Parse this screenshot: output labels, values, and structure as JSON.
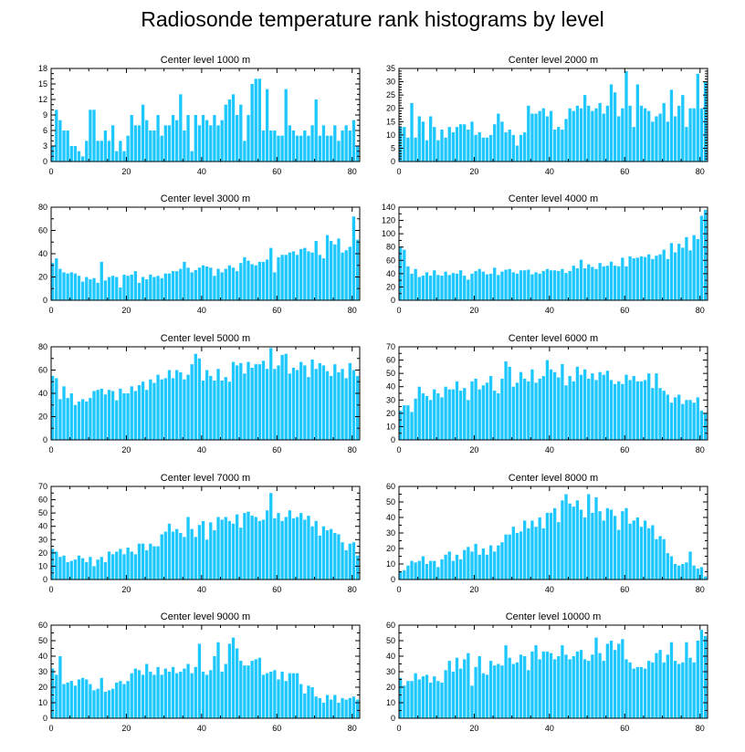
{
  "title": "Radiosonde temperature rank histograms by level",
  "colors": {
    "bar": "#1ec8ff",
    "bar_edge": "#ffffff",
    "axis": "#000000"
  },
  "chart_data": [
    {
      "type": "bar",
      "title": "Center level 1000 m",
      "xlim": [
        0,
        82
      ],
      "ylim": [
        0,
        18
      ],
      "xticks": [
        0,
        20,
        40,
        60,
        80
      ],
      "yticks": [
        0,
        3,
        6,
        9,
        12,
        15,
        18
      ],
      "values": [
        3,
        10,
        8,
        6,
        6,
        3,
        3,
        2,
        1,
        4,
        10,
        10,
        4,
        4,
        6,
        4,
        7,
        2,
        4,
        2,
        5,
        9,
        7,
        7,
        11,
        8,
        6,
        6,
        9,
        5,
        7,
        7,
        9,
        8,
        13,
        6,
        9,
        2,
        9,
        7,
        9,
        8,
        7,
        9,
        7,
        8,
        11,
        12,
        13,
        9,
        11,
        4,
        9,
        15,
        16,
        16,
        6,
        14,
        6,
        6,
        5,
        5,
        14,
        7,
        6,
        5,
        5,
        6,
        5,
        7,
        12,
        5,
        7,
        5,
        5,
        7,
        4,
        6,
        7,
        6,
        8,
        3
      ]
    },
    {
      "type": "bar",
      "title": "Center level 2000 m",
      "xlim": [
        0,
        82
      ],
      "ylim": [
        0,
        35
      ],
      "xticks": [
        0,
        20,
        40,
        60,
        80
      ],
      "yticks": [
        0,
        5,
        10,
        15,
        20,
        25,
        30,
        35
      ],
      "values": [
        13,
        13,
        9,
        22,
        9,
        17,
        15,
        8,
        17,
        13,
        8,
        12,
        9,
        13,
        11,
        13,
        14,
        14,
        12,
        15,
        10,
        11,
        9,
        9,
        10,
        14,
        18,
        15,
        11,
        12,
        10,
        6,
        10,
        11,
        21,
        18,
        18,
        19,
        20,
        17,
        19,
        12,
        13,
        12,
        16,
        20,
        19,
        21,
        20,
        25,
        21,
        19,
        20,
        22,
        18,
        21,
        29,
        26,
        17,
        20,
        34,
        21,
        13,
        29,
        21,
        20,
        19,
        15,
        17,
        18,
        22,
        15,
        27,
        17,
        21,
        25,
        13,
        20,
        20,
        33,
        20,
        30
      ]
    },
    {
      "type": "bar",
      "title": "Center level 3000 m",
      "xlim": [
        0,
        82
      ],
      "ylim": [
        0,
        80
      ],
      "xticks": [
        0,
        20,
        40,
        60,
        80
      ],
      "yticks": [
        0,
        20,
        40,
        60,
        80
      ],
      "values": [
        32,
        36,
        27,
        24,
        23,
        24,
        23,
        21,
        16,
        20,
        18,
        19,
        15,
        33,
        17,
        20,
        21,
        20,
        11,
        22,
        21,
        22,
        25,
        15,
        20,
        18,
        22,
        20,
        21,
        19,
        23,
        23,
        25,
        25,
        27,
        33,
        28,
        24,
        26,
        28,
        30,
        29,
        28,
        21,
        27,
        24,
        27,
        30,
        28,
        25,
        32,
        37,
        34,
        31,
        30,
        33,
        33,
        35,
        45,
        24,
        37,
        39,
        39,
        41,
        42,
        39,
        44,
        45,
        42,
        41,
        51,
        39,
        36,
        56,
        51,
        48,
        53,
        41,
        43,
        46,
        72,
        52
      ]
    },
    {
      "type": "bar",
      "title": "Center level 4000 m",
      "xlim": [
        0,
        82
      ],
      "ylim": [
        0,
        140
      ],
      "xticks": [
        0,
        20,
        40,
        60,
        80
      ],
      "yticks": [
        0,
        20,
        40,
        60,
        80,
        100,
        120,
        140
      ],
      "values": [
        80,
        76,
        51,
        40,
        47,
        35,
        37,
        42,
        37,
        45,
        38,
        37,
        43,
        38,
        41,
        40,
        45,
        37,
        31,
        40,
        44,
        47,
        43,
        39,
        40,
        49,
        38,
        43,
        46,
        47,
        42,
        40,
        45,
        45,
        46,
        39,
        42,
        40,
        44,
        47,
        45,
        45,
        44,
        47,
        41,
        44,
        52,
        48,
        61,
        48,
        54,
        50,
        47,
        56,
        51,
        52,
        58,
        52,
        51,
        64,
        51,
        66,
        63,
        64,
        66,
        65,
        69,
        62,
        67,
        69,
        76,
        62,
        86,
        72,
        85,
        79,
        95,
        75,
        98,
        92,
        127,
        136
      ]
    },
    {
      "type": "bar",
      "title": "Center level 5000 m",
      "xlim": [
        0,
        82
      ],
      "ylim": [
        0,
        80
      ],
      "xticks": [
        0,
        20,
        40,
        60,
        80
      ],
      "yticks": [
        0,
        20,
        40,
        60,
        80
      ],
      "values": [
        55,
        53,
        35,
        46,
        36,
        40,
        30,
        33,
        35,
        33,
        36,
        42,
        43,
        44,
        39,
        43,
        42,
        34,
        44,
        40,
        40,
        46,
        42,
        47,
        50,
        43,
        52,
        49,
        56,
        52,
        53,
        60,
        53,
        60,
        58,
        52,
        56,
        65,
        74,
        70,
        51,
        60,
        55,
        51,
        61,
        51,
        54,
        50,
        67,
        64,
        66,
        57,
        67,
        62,
        65,
        65,
        68,
        61,
        79,
        61,
        64,
        73,
        74,
        57,
        62,
        60,
        67,
        64,
        54,
        69,
        61,
        66,
        64,
        59,
        55,
        65,
        58,
        61,
        53,
        66,
        60,
        55
      ]
    },
    {
      "type": "bar",
      "title": "Center level 6000 m",
      "xlim": [
        0,
        82
      ],
      "ylim": [
        0,
        70
      ],
      "xticks": [
        0,
        20,
        40,
        60,
        80
      ],
      "yticks": [
        0,
        10,
        20,
        30,
        40,
        50,
        60,
        70
      ],
      "values": [
        22,
        26,
        26,
        21,
        31,
        40,
        35,
        33,
        30,
        38,
        35,
        32,
        40,
        38,
        38,
        44,
        37,
        39,
        30,
        44,
        46,
        38,
        41,
        43,
        48,
        37,
        35,
        46,
        59,
        55,
        40,
        43,
        51,
        46,
        44,
        53,
        43,
        46,
        48,
        60,
        53,
        51,
        47,
        57,
        41,
        48,
        44,
        55,
        49,
        53,
        46,
        50,
        45,
        51,
        49,
        52,
        45,
        42,
        44,
        42,
        49,
        45,
        48,
        44,
        44,
        45,
        50,
        39,
        50,
        39,
        37,
        34,
        28,
        32,
        34,
        27,
        30,
        30,
        28,
        32,
        22,
        20
      ]
    },
    {
      "type": "bar",
      "title": "Center level 7000 m",
      "xlim": [
        0,
        82
      ],
      "ylim": [
        0,
        70
      ],
      "xticks": [
        0,
        20,
        40,
        60,
        80
      ],
      "yticks": [
        0,
        10,
        20,
        30,
        40,
        50,
        60,
        70
      ],
      "values": [
        23,
        21,
        17,
        18,
        13,
        14,
        15,
        18,
        16,
        13,
        17,
        10,
        15,
        17,
        13,
        21,
        19,
        21,
        23,
        19,
        24,
        21,
        19,
        27,
        27,
        22,
        27,
        25,
        25,
        34,
        36,
        42,
        36,
        38,
        35,
        32,
        47,
        38,
        32,
        41,
        44,
        30,
        43,
        37,
        47,
        45,
        47,
        44,
        42,
        49,
        39,
        50,
        51,
        48,
        47,
        44,
        45,
        52,
        65,
        46,
        50,
        44,
        47,
        52,
        46,
        47,
        50,
        45,
        48,
        40,
        44,
        33,
        40,
        37,
        38,
        35,
        34,
        28,
        22,
        27,
        28,
        18
      ]
    },
    {
      "type": "bar",
      "title": "Center level 8000 m",
      "xlim": [
        0,
        82
      ],
      "ylim": [
        0,
        60
      ],
      "xticks": [
        0,
        20,
        40,
        60,
        80
      ],
      "yticks": [
        0,
        10,
        20,
        30,
        40,
        50,
        60
      ],
      "values": [
        5,
        6,
        9,
        12,
        11,
        12,
        15,
        10,
        12,
        12,
        8,
        13,
        16,
        18,
        12,
        16,
        13,
        19,
        21,
        18,
        23,
        16,
        20,
        16,
        22,
        18,
        22,
        24,
        29,
        29,
        34,
        30,
        31,
        38,
        33,
        38,
        34,
        40,
        33,
        43,
        43,
        46,
        37,
        51,
        55,
        49,
        47,
        51,
        45,
        40,
        55,
        43,
        53,
        44,
        38,
        46,
        45,
        41,
        32,
        44,
        46,
        36,
        38,
        40,
        34,
        38,
        33,
        35,
        26,
        28,
        26,
        17,
        15,
        10,
        9,
        10,
        11,
        18,
        9,
        7,
        8,
        2
      ]
    },
    {
      "type": "bar",
      "title": "Center level 9000 m",
      "xlim": [
        0,
        82
      ],
      "ylim": [
        0,
        60
      ],
      "xticks": [
        0,
        20,
        40,
        60,
        80
      ],
      "yticks": [
        0,
        10,
        20,
        30,
        40,
        50,
        60
      ],
      "values": [
        32,
        28,
        40,
        22,
        23,
        24,
        21,
        25,
        26,
        25,
        22,
        18,
        19,
        26,
        17,
        18,
        19,
        23,
        24,
        22,
        24,
        29,
        32,
        31,
        28,
        35,
        30,
        28,
        33,
        28,
        32,
        30,
        33,
        29,
        30,
        32,
        35,
        29,
        33,
        48,
        30,
        28,
        31,
        40,
        49,
        30,
        35,
        48,
        52,
        45,
        37,
        34,
        34,
        37,
        38,
        39,
        28,
        29,
        30,
        31,
        25,
        30,
        24,
        29,
        29,
        29,
        22,
        16,
        21,
        20,
        14,
        13,
        10,
        15,
        12,
        15,
        10,
        13,
        12,
        13,
        14,
        12
      ]
    },
    {
      "type": "bar",
      "title": "Center level 10000 m",
      "xlim": [
        0,
        82
      ],
      "ylim": [
        0,
        60
      ],
      "xticks": [
        0,
        20,
        40,
        60,
        80
      ],
      "yticks": [
        0,
        10,
        20,
        30,
        40,
        50,
        60
      ],
      "values": [
        26,
        21,
        24,
        24,
        29,
        25,
        27,
        28,
        23,
        27,
        24,
        23,
        31,
        37,
        30,
        39,
        32,
        38,
        42,
        21,
        33,
        40,
        29,
        28,
        37,
        34,
        35,
        34,
        47,
        39,
        35,
        36,
        41,
        40,
        31,
        43,
        47,
        38,
        43,
        43,
        42,
        38,
        40,
        47,
        41,
        38,
        40,
        43,
        44,
        38,
        37,
        41,
        52,
        42,
        37,
        48,
        50,
        44,
        48,
        51,
        38,
        36,
        32,
        33,
        33,
        32,
        37,
        36,
        42,
        44,
        36,
        41,
        49,
        37,
        35,
        36,
        49,
        39,
        36,
        50,
        57,
        53
      ]
    }
  ]
}
